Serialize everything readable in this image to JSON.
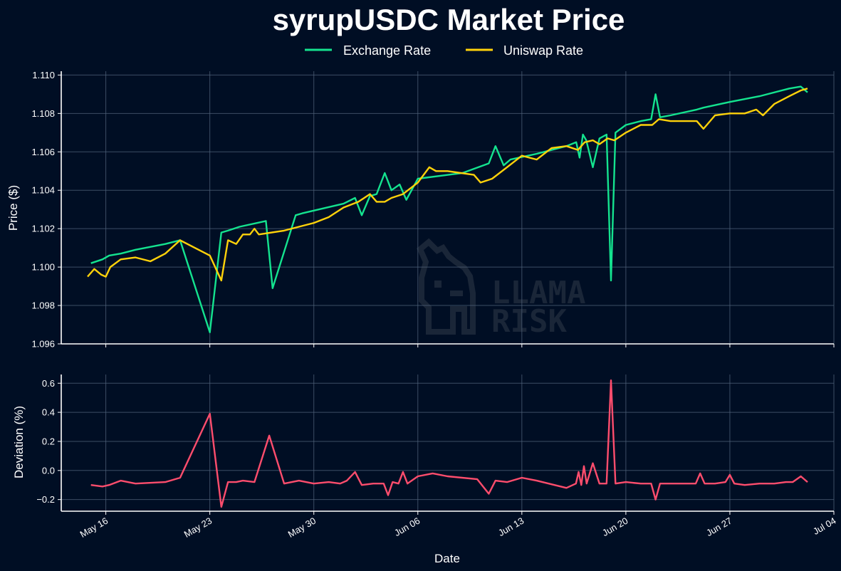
{
  "colors": {
    "background": "#000e24",
    "exchange": "#14e38f",
    "uniswap": "#ffd20a",
    "deviation": "#ff4d6d",
    "grid": "#51627a",
    "watermark": "#1a2638"
  },
  "watermark": {
    "line1": "LLAMA",
    "line2": "RISK",
    "icon": "llama-logo-icon"
  },
  "chart_data": [
    {
      "type": "line",
      "title": "syrupUSDC Market Price",
      "xlabel": "",
      "ylabel": "Price ($)",
      "ylim": [
        1.096,
        1.1102
      ],
      "yticks": [
        1.096,
        1.098,
        1.1,
        1.102,
        1.104,
        1.106,
        1.108,
        1.11
      ],
      "ytick_labels": [
        "1.096",
        "1.098",
        "1.100",
        "1.102",
        "1.104",
        "1.106",
        "1.108",
        "1.110"
      ],
      "grid": true,
      "legend_position": "top-center",
      "series": [
        {
          "name": "Exchange Rate",
          "x": [
            "2025-05-15",
            "2025-05-16",
            "2025-05-16",
            "2025-05-17",
            "2025-05-18",
            "2025-05-20",
            "2025-05-21",
            "2025-05-23",
            "2025-05-24",
            "2025-05-24",
            "2025-05-25",
            "2025-05-27",
            "2025-05-27",
            "2025-05-29",
            "2025-05-29",
            "2025-06-01",
            "2025-06-02",
            "2025-06-02",
            "2025-06-03",
            "2025-06-03",
            "2025-06-04",
            "2025-06-04",
            "2025-06-05",
            "2025-06-05",
            "2025-06-06",
            "2025-06-09",
            "2025-06-11",
            "2025-06-11",
            "2025-06-12",
            "2025-06-12",
            "2025-06-14",
            "2025-06-16",
            "2025-06-17",
            "2025-06-17",
            "2025-06-17",
            "2025-06-17",
            "2025-06-18",
            "2025-06-18",
            "2025-06-19",
            "2025-06-19",
            "2025-06-19",
            "2025-06-20",
            "2025-06-21",
            "2025-06-22",
            "2025-06-22",
            "2025-06-22",
            "2025-06-23",
            "2025-06-25",
            "2025-06-25",
            "2025-06-27",
            "2025-06-29",
            "2025-07-01",
            "2025-07-02",
            "2025-07-02"
          ],
          "values": [
            1.1002,
            1.1004,
            1.1006,
            1.1007,
            1.1009,
            1.1012,
            1.1014,
            1.0966,
            1.1018,
            1.1019,
            1.1021,
            1.1024,
            1.0989,
            1.1027,
            1.1028,
            1.1033,
            1.1036,
            1.1027,
            1.1037,
            1.1038,
            1.1049,
            1.104,
            1.1043,
            1.1035,
            1.1046,
            1.1049,
            1.1054,
            1.1063,
            1.1053,
            1.1056,
            1.1059,
            1.1063,
            1.1065,
            1.1057,
            1.1069,
            1.1066,
            1.1052,
            1.1067,
            1.1069,
            1.0993,
            1.107,
            1.1074,
            1.1076,
            1.1077,
            1.109,
            1.1078,
            1.1079,
            1.1082,
            1.1083,
            1.1086,
            1.1089,
            1.1093,
            1.1094,
            1.1091
          ]
        },
        {
          "name": "Uniswap Rate",
          "x": [
            "2025-05-15",
            "2025-05-15",
            "2025-05-16",
            "2025-05-16",
            "2025-05-16",
            "2025-05-17",
            "2025-05-18",
            "2025-05-19",
            "2025-05-20",
            "2025-05-21",
            "2025-05-23",
            "2025-05-24",
            "2025-05-24",
            "2025-05-25",
            "2025-05-25",
            "2025-05-26",
            "2025-05-26",
            "2025-05-26",
            "2025-05-28",
            "2025-05-29",
            "2025-05-30",
            "2025-05-31",
            "2025-06-01",
            "2025-06-02",
            "2025-06-03",
            "2025-06-03",
            "2025-06-04",
            "2025-06-04",
            "2025-06-05",
            "2025-06-06",
            "2025-06-07",
            "2025-06-07",
            "2025-06-08",
            "2025-06-10",
            "2025-06-10",
            "2025-06-11",
            "2025-06-12",
            "2025-06-13",
            "2025-06-14",
            "2025-06-15",
            "2025-06-16",
            "2025-06-17",
            "2025-06-17",
            "2025-06-18",
            "2025-06-18",
            "2025-06-19",
            "2025-06-19",
            "2025-06-20",
            "2025-06-21",
            "2025-06-22",
            "2025-06-22",
            "2025-06-23",
            "2025-06-24",
            "2025-06-25",
            "2025-06-25",
            "2025-06-26",
            "2025-06-27",
            "2025-06-28",
            "2025-06-29",
            "2025-06-29",
            "2025-06-30",
            "2025-07-01",
            "2025-07-02",
            "2025-07-02"
          ],
          "values": [
            1.0995,
            1.0999,
            1.0996,
            1.0995,
            1.1,
            1.1004,
            1.1005,
            1.1003,
            1.1007,
            1.1014,
            1.1006,
            1.0993,
            1.1014,
            1.1012,
            1.1017,
            1.1017,
            1.102,
            1.1017,
            1.1019,
            1.1021,
            1.1023,
            1.1026,
            1.1031,
            1.1034,
            1.1038,
            1.1034,
            1.1034,
            1.1036,
            1.1038,
            1.1044,
            1.1052,
            1.105,
            1.105,
            1.1048,
            1.1044,
            1.1046,
            1.1052,
            1.1058,
            1.1056,
            1.1062,
            1.1063,
            1.1061,
            1.1065,
            1.1066,
            1.1064,
            1.1067,
            1.1066,
            1.107,
            1.1074,
            1.1074,
            1.1077,
            1.1076,
            1.1076,
            1.1076,
            1.1072,
            1.1079,
            1.108,
            1.108,
            1.1082,
            1.1079,
            1.1085,
            1.1089,
            1.1092,
            1.1093
          ]
        }
      ]
    },
    {
      "type": "line",
      "title": "",
      "xlabel": "Date",
      "ylabel": "Deviation (%)",
      "ylim": [
        -0.28,
        0.66
      ],
      "yticks": [
        -0.2,
        0,
        0.2,
        0.4,
        0.6
      ],
      "ytick_labels": [
        "−0.2",
        "0.0",
        "0.2",
        "0.4",
        "0.6"
      ],
      "xlim": [
        "2025-05-13",
        "2025-07-04"
      ],
      "xticks": [
        "2025-05-16",
        "2025-05-23",
        "2025-05-30",
        "2025-06-06",
        "2025-06-13",
        "2025-06-20",
        "2025-06-27",
        "2025-07-04"
      ],
      "xtick_labels": [
        "May 16",
        "May 23",
        "May 30",
        "Jun 06",
        "Jun 13",
        "Jun 20",
        "Jun 27",
        "Jul 04"
      ],
      "grid": true,
      "series": [
        {
          "x": [
            "2025-05-15",
            "2025-05-16",
            "2025-05-16",
            "2025-05-17",
            "2025-05-18",
            "2025-05-20",
            "2025-05-21",
            "2025-05-23",
            "2025-05-24",
            "2025-05-24",
            "2025-05-25",
            "2025-05-25",
            "2025-05-26",
            "2025-05-27",
            "2025-05-28",
            "2025-05-29",
            "2025-05-30",
            "2025-05-31",
            "2025-06-01",
            "2025-06-01",
            "2025-06-02",
            "2025-06-02",
            "2025-06-03",
            "2025-06-04",
            "2025-06-04",
            "2025-06-04",
            "2025-06-05",
            "2025-06-05",
            "2025-06-05",
            "2025-06-06",
            "2025-06-07",
            "2025-06-08",
            "2025-06-10",
            "2025-06-11",
            "2025-06-11",
            "2025-06-12",
            "2025-06-13",
            "2025-06-14",
            "2025-06-16",
            "2025-06-17",
            "2025-06-17",
            "2025-06-17",
            "2025-06-17",
            "2025-06-17",
            "2025-06-18",
            "2025-06-18",
            "2025-06-19",
            "2025-06-19",
            "2025-06-19",
            "2025-06-20",
            "2025-06-21",
            "2025-06-22",
            "2025-06-22",
            "2025-06-22",
            "2025-06-23",
            "2025-06-25",
            "2025-06-25",
            "2025-06-25",
            "2025-06-26",
            "2025-06-27",
            "2025-06-27",
            "2025-06-27",
            "2025-06-28",
            "2025-06-29",
            "2025-06-30",
            "2025-07-01",
            "2025-07-01",
            "2025-07-02",
            "2025-07-02"
          ],
          "values": [
            -0.1,
            -0.11,
            -0.1,
            -0.07,
            -0.09,
            -0.08,
            -0.05,
            0.39,
            -0.25,
            -0.08,
            -0.08,
            -0.07,
            -0.08,
            0.24,
            -0.09,
            -0.07,
            -0.09,
            -0.08,
            -0.09,
            -0.07,
            -0.01,
            -0.1,
            -0.09,
            -0.09,
            -0.17,
            -0.08,
            -0.09,
            -0.01,
            -0.09,
            -0.04,
            -0.02,
            -0.04,
            -0.06,
            -0.16,
            -0.07,
            -0.08,
            -0.05,
            -0.07,
            -0.12,
            -0.09,
            -0.01,
            -0.1,
            0.03,
            -0.09,
            0.05,
            -0.09,
            -0.09,
            0.62,
            -0.09,
            -0.08,
            -0.09,
            -0.09,
            -0.2,
            -0.09,
            -0.09,
            -0.09,
            -0.02,
            -0.09,
            -0.09,
            -0.08,
            -0.03,
            -0.09,
            -0.1,
            -0.09,
            -0.09,
            -0.08,
            -0.08,
            -0.04,
            -0.08
          ]
        }
      ]
    }
  ]
}
